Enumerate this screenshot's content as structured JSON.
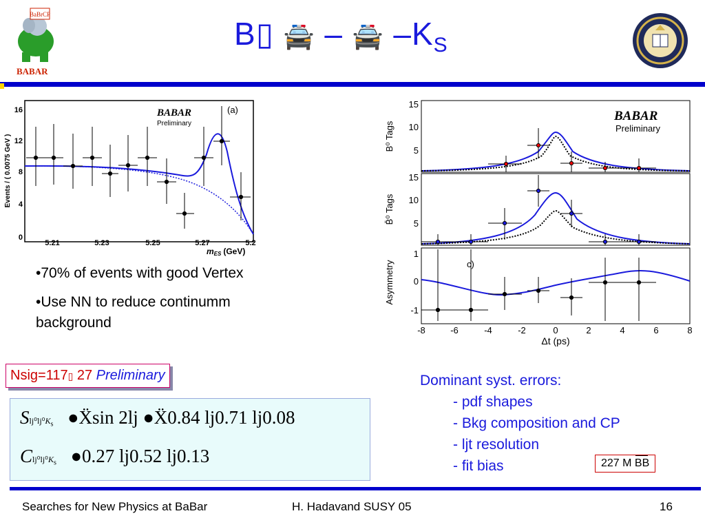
{
  "header": {
    "title_main": "B",
    "title_glyph1": "\u001a",
    "title_car": "🚔",
    "title_dash": "–",
    "title_ks": "K",
    "title_ks_sub": "S",
    "logo_label": "BABAR",
    "logo_badge": "BaBrCP"
  },
  "plot_a": {
    "label": "(a)",
    "brand": "BABAR",
    "brand_sub": "Preliminary",
    "ylabel": "Events / ( 0.0075 GeV )",
    "xlabel": "m",
    "xlabel_sub": "ES",
    "xlabel_unit": "(GeV)",
    "yticks": [
      "16",
      "12",
      "8",
      "4",
      "0"
    ],
    "xticks": [
      "5.21",
      "5.23",
      "5.25",
      "5.27",
      "5.2"
    ]
  },
  "plot_b": {
    "brand": "BABAR",
    "brand_sub": "Preliminary",
    "panel1_ylabel": "B⁰ Tags",
    "panel2_ylabel": "B̄⁰ Tags",
    "panel3_ylabel": "Asymmetry",
    "panel3_tag": "c)",
    "yticks_tags": [
      "15",
      "10",
      "5"
    ],
    "yticks_asym": [
      "1",
      "0",
      "-1"
    ],
    "xticks": [
      "-8",
      "-6",
      "-4",
      "-2",
      "0",
      "2",
      "4",
      "6",
      "8"
    ],
    "xlabel": "Δt (ps)"
  },
  "bullets": [
    "•70% of events with good Vertex",
    "•Use NN to reduce continumm background"
  ],
  "nsig": {
    "text": "Nsig=117",
    "pm": " 27 ",
    "prelim": "Preliminary"
  },
  "formulas": {
    "S_line": "●Ẍsin 2ǉ  ●Ẍ0.84  ǉ0.71  ǉ0.08",
    "C_line": "●0.27  ǉ0.52  ǉ0.13"
  },
  "syst": {
    "heading": "Dominant syst. errors:",
    "items": [
      "- pdf shapes",
      "- Bkg composition and CP",
      "- ǉt resolution",
      "- fit bias"
    ]
  },
  "lumi": "227 M BB",
  "footer": {
    "left": "Searches for New Physics at BaBar",
    "center": "H. Hadavand  SUSY 05",
    "page": "16"
  },
  "colors": {
    "accent": "#1a1adc",
    "rule": "#0000cc",
    "red": "#cc0000"
  }
}
